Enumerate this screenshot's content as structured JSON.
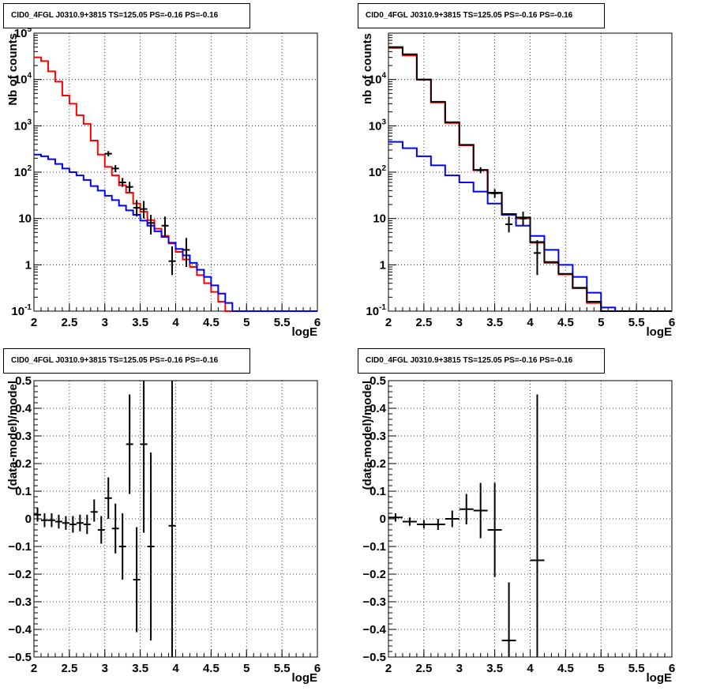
{
  "chart_data": [
    {
      "type": "line",
      "title": "CID0_4FGL J0310.9+3815 TS=125.05 PS=-0.16 PS=-0.16",
      "xlabel": "logE",
      "ylabel": "Nb of counts",
      "xlim": [
        2,
        6
      ],
      "ylim": [
        0.1,
        100000
      ],
      "yscale": "log",
      "grid": true,
      "xticks": [
        "2",
        "2.5",
        "3",
        "3.5",
        "4",
        "4.5",
        "5",
        "5.5",
        "6"
      ],
      "yticks": [
        "10^{-1}",
        "1",
        "10",
        "10^{2}",
        "10^{3}",
        "10^{4}",
        "10^{5}"
      ],
      "bin_edges": [
        2.0,
        2.1,
        2.2,
        2.3,
        2.4,
        2.5,
        2.6,
        2.7,
        2.8,
        2.9,
        3.0,
        3.1,
        3.2,
        3.3,
        3.4,
        3.5,
        3.6,
        3.7,
        3.8,
        3.9,
        4.0,
        4.1,
        4.2,
        4.3,
        4.4,
        4.5,
        4.6,
        4.7,
        4.8,
        4.9,
        5.0,
        5.1,
        5.2,
        5.3,
        5.4,
        5.5,
        5.6,
        5.7,
        5.8,
        5.9,
        6.0
      ],
      "series": [
        {
          "style": "step",
          "color": "#ff0000",
          "values": [
            30000,
            25000,
            15000,
            9000,
            4500,
            3000,
            1700,
            1100,
            480,
            240,
            130,
            85,
            52,
            36,
            21,
            14,
            9.2,
            6,
            4.2,
            2.9,
            1.9,
            1.3,
            0.9,
            0.6,
            0.4,
            0.26,
            0.16,
            0.1,
            0.1,
            0.1,
            0.1,
            0.1,
            0.1,
            0.1,
            0.1,
            0.1,
            0.1,
            0.1,
            0.1,
            0.1
          ]
        },
        {
          "style": "step",
          "color": "#0000ff",
          "values": [
            240,
            220,
            190,
            150,
            120,
            100,
            85,
            68,
            50,
            40,
            31,
            25,
            19,
            15,
            12,
            9,
            7,
            5.3,
            4,
            3,
            2.2,
            1.6,
            1.1,
            0.78,
            0.55,
            0.36,
            0.24,
            0.15,
            0.1,
            0.1,
            0.1,
            0.1,
            0.1,
            0.1,
            0.1,
            0.1,
            0.1,
            0.1,
            0.1,
            0.1
          ]
        },
        {
          "style": "errorbar",
          "color": "#000000",
          "points": [
            {
              "x": 3.05,
              "y": 250,
              "ylo": 220,
              "yhi": 285
            },
            {
              "x": 3.15,
              "y": 120,
              "ylo": 100,
              "yhi": 142
            },
            {
              "x": 3.25,
              "y": 60,
              "ylo": 48,
              "yhi": 75
            },
            {
              "x": 3.35,
              "y": 48,
              "ylo": 37,
              "yhi": 62
            },
            {
              "x": 3.45,
              "y": 17,
              "ylo": 11,
              "yhi": 25
            },
            {
              "x": 3.55,
              "y": 16,
              "ylo": 10,
              "yhi": 24
            },
            {
              "x": 3.65,
              "y": 8,
              "ylo": 4.5,
              "yhi": 12
            },
            {
              "x": 3.85,
              "y": 7,
              "ylo": 4,
              "yhi": 11
            },
            {
              "x": 3.95,
              "y": 1.2,
              "ylo": 0.6,
              "yhi": 2.5
            },
            {
              "x": 4.15,
              "y": 2.1,
              "ylo": 0.9,
              "yhi": 3.8
            }
          ]
        }
      ]
    },
    {
      "type": "line",
      "title": "CID0_4FGL J0310.9+3815 TS=125.05 PS=-0.16 PS=-0.16",
      "xlabel": "logE",
      "ylabel": "nb of counts",
      "xlim": [
        2,
        6
      ],
      "ylim": [
        0.1,
        100000
      ],
      "yscale": "log",
      "grid": true,
      "xticks": [
        "2",
        "2.5",
        "3",
        "3.5",
        "4",
        "4.5",
        "5",
        "5.5",
        "6"
      ],
      "yticks": [
        "10^{-1}",
        "1",
        "10",
        "10^{2}",
        "10^{3}",
        "10^{4}"
      ],
      "bin_edges": [
        2.0,
        2.2,
        2.4,
        2.6,
        2.8,
        3.0,
        3.2,
        3.4,
        3.6,
        3.8,
        4.0,
        4.2,
        4.4,
        4.6,
        4.8,
        5.0,
        5.2,
        5.4,
        5.6,
        5.8,
        6.0
      ],
      "series": [
        {
          "style": "step",
          "color": "#ff0000",
          "values": [
            48000,
            33000,
            9800,
            3200,
            1150,
            380,
            110,
            35,
            12,
            10,
            3,
            1.1,
            0.62,
            0.31,
            0.15,
            0.1,
            0.1,
            0.1,
            0.1,
            0.1
          ]
        },
        {
          "style": "step",
          "color": "#0000ff",
          "values": [
            450,
            330,
            220,
            140,
            85,
            60,
            38,
            21,
            12,
            7,
            4.2,
            2.1,
            1,
            0.55,
            0.25,
            0.12,
            0.1,
            0.1,
            0.1,
            0.1
          ]
        },
        {
          "style": "step",
          "color": "#000000",
          "values": [
            50000,
            35000,
            10000,
            3300,
            1200,
            390,
            112,
            36,
            12.5,
            10.5,
            3.1,
            1.15,
            0.64,
            0.32,
            0.16,
            0.1,
            0.1,
            0.1,
            0.1,
            0.1
          ]
        },
        {
          "style": "errorbar",
          "color": "#000000",
          "points": [
            {
              "x": 3.3,
              "y": 110,
              "ylo": 95,
              "yhi": 128
            },
            {
              "x": 3.5,
              "y": 35,
              "ylo": 28,
              "yhi": 43
            },
            {
              "x": 3.7,
              "y": 7.5,
              "ylo": 5,
              "yhi": 11
            },
            {
              "x": 3.9,
              "y": 10,
              "ylo": 7,
              "yhi": 14
            },
            {
              "x": 4.1,
              "y": 1.8,
              "ylo": 0.6,
              "yhi": 3.4
            }
          ]
        }
      ]
    },
    {
      "type": "scatter",
      "title": "CID0_4FGL J0310.9+3815 TS=125.05 PS=-0.16 PS=-0.16",
      "xlabel": "logE",
      "ylabel": "(data-model)/model",
      "xlim": [
        2,
        6
      ],
      "ylim": [
        -0.5,
        0.5
      ],
      "grid": true,
      "xticks": [
        "2",
        "2.5",
        "3",
        "3.5",
        "4",
        "4.5",
        "5",
        "5.5",
        "6"
      ],
      "yticks": [
        "−0.5",
        "−0.4",
        "−0.3",
        "−0.2",
        "−0.1",
        "0",
        "0.1",
        "0.2",
        "0.3",
        "0.4",
        "0.5"
      ],
      "series": [
        {
          "style": "errorbar",
          "color": "#000000",
          "xerr": 0.05,
          "points": [
            {
              "x": 2.05,
              "y": 0.015,
              "ylo": -0.01,
              "yhi": 0.04
            },
            {
              "x": 2.15,
              "y": -0.005,
              "ylo": -0.03,
              "yhi": 0.02
            },
            {
              "x": 2.25,
              "y": -0.005,
              "ylo": -0.03,
              "yhi": 0.02
            },
            {
              "x": 2.35,
              "y": -0.01,
              "ylo": -0.035,
              "yhi": 0.015
            },
            {
              "x": 2.45,
              "y": -0.015,
              "ylo": -0.04,
              "yhi": 0.01
            },
            {
              "x": 2.55,
              "y": -0.02,
              "ylo": -0.05,
              "yhi": 0.01
            },
            {
              "x": 2.65,
              "y": -0.015,
              "ylo": -0.045,
              "yhi": 0.015
            },
            {
              "x": 2.75,
              "y": -0.02,
              "ylo": -0.055,
              "yhi": 0.015
            },
            {
              "x": 2.85,
              "y": 0.025,
              "ylo": -0.01,
              "yhi": 0.07
            },
            {
              "x": 2.95,
              "y": -0.04,
              "ylo": -0.09,
              "yhi": 0.01
            },
            {
              "x": 3.05,
              "y": 0.075,
              "ylo": 0.0,
              "yhi": 0.15
            },
            {
              "x": 3.15,
              "y": -0.035,
              "ylo": -0.125,
              "yhi": 0.055
            },
            {
              "x": 3.25,
              "y": -0.1,
              "ylo": -0.22,
              "yhi": 0.02
            },
            {
              "x": 3.35,
              "y": 0.27,
              "ylo": 0.09,
              "yhi": 0.45
            },
            {
              "x": 3.45,
              "y": -0.22,
              "ylo": -0.41,
              "yhi": -0.03
            },
            {
              "x": 3.55,
              "y": 0.27,
              "ylo": -0.05,
              "yhi": 0.5
            },
            {
              "x": 3.65,
              "y": -0.1,
              "ylo": -0.44,
              "yhi": 0.24
            },
            {
              "x": 3.95,
              "y": -0.025,
              "ylo": -0.5,
              "yhi": 0.5
            }
          ]
        }
      ]
    },
    {
      "type": "scatter",
      "title": "CID0_4FGL J0310.9+3815 TS=125.05 PS=-0.16 PS=-0.16",
      "xlabel": "logE",
      "ylabel": "(data-model)/model",
      "xlim": [
        2,
        6
      ],
      "ylim": [
        -0.5,
        0.5
      ],
      "grid": true,
      "xticks": [
        "2",
        "2.5",
        "3",
        "3.5",
        "4",
        "4.5",
        "5",
        "5.5",
        "6"
      ],
      "yticks": [
        "−0.5",
        "−0.4",
        "−0.3",
        "−0.2",
        "−0.1",
        "0",
        "0.1",
        "0.2",
        "0.3",
        "0.4",
        "0.5"
      ],
      "series": [
        {
          "style": "errorbar",
          "color": "#000000",
          "xerr": 0.1,
          "points": [
            {
              "x": 2.1,
              "y": 0.005,
              "ylo": -0.01,
              "yhi": 0.02
            },
            {
              "x": 2.3,
              "y": -0.01,
              "ylo": -0.025,
              "yhi": 0.005
            },
            {
              "x": 2.5,
              "y": -0.02,
              "ylo": -0.035,
              "yhi": -0.005
            },
            {
              "x": 2.7,
              "y": -0.02,
              "ylo": -0.04,
              "yhi": 0.0
            },
            {
              "x": 2.9,
              "y": 0.0,
              "ylo": -0.03,
              "yhi": 0.03
            },
            {
              "x": 3.1,
              "y": 0.035,
              "ylo": -0.02,
              "yhi": 0.09
            },
            {
              "x": 3.3,
              "y": 0.03,
              "ylo": -0.07,
              "yhi": 0.13
            },
            {
              "x": 3.5,
              "y": -0.04,
              "ylo": -0.21,
              "yhi": 0.13
            },
            {
              "x": 3.7,
              "y": -0.44,
              "ylo": -0.5,
              "yhi": -0.23
            },
            {
              "x": 4.1,
              "y": -0.15,
              "ylo": -0.5,
              "yhi": 0.45
            }
          ]
        }
      ]
    }
  ]
}
